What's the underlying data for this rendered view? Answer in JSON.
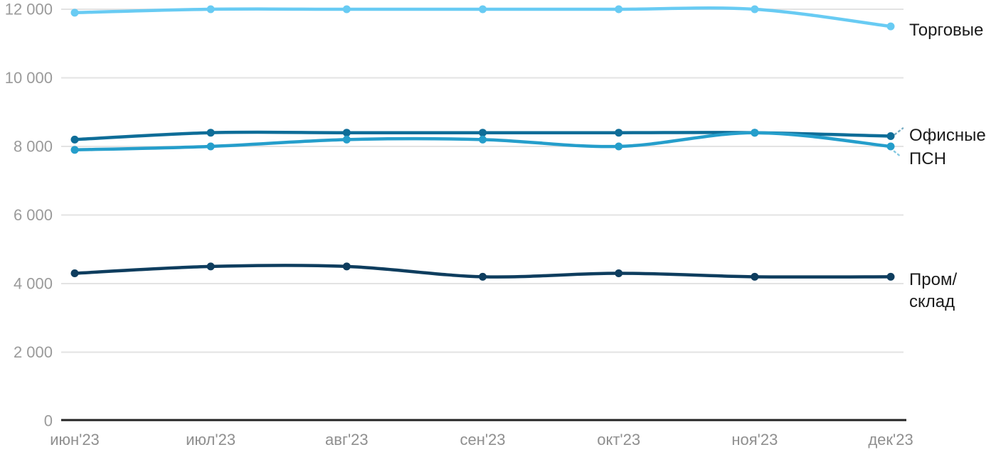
{
  "chart_data": {
    "type": "line",
    "title": "",
    "xlabel": "",
    "ylabel": "",
    "x": [
      "июн'23",
      "июл'23",
      "авг'23",
      "сен'23",
      "окт'23",
      "ноя'23",
      "дек'23"
    ],
    "series": [
      {
        "key": "torgovye",
        "name": "Торговые",
        "label_lines": [
          "Торговые"
        ],
        "color": "#68CBF3",
        "values": [
          11900,
          12000,
          12000,
          12000,
          12000,
          12000,
          11500
        ],
        "has_label_connector": false
      },
      {
        "key": "ofisnye",
        "name": "Офисные",
        "label_lines": [
          "Офисные"
        ],
        "color": "#0E6D98",
        "values": [
          8200,
          8400,
          8400,
          8400,
          8400,
          8400,
          8300
        ],
        "has_label_connector": true
      },
      {
        "key": "psn",
        "name": "ПСН",
        "label_lines": [
          "ПСН"
        ],
        "color": "#259ECB",
        "values": [
          7900,
          8000,
          8200,
          8200,
          8000,
          8400,
          8000
        ],
        "has_label_connector": true
      },
      {
        "key": "prom-sklad",
        "name": "Пром/склад",
        "label_lines": [
          "Пром/",
          "склад"
        ],
        "color": "#0E3D5E",
        "values": [
          4300,
          4500,
          4500,
          4200,
          4300,
          4200,
          4200
        ],
        "has_label_connector": false
      }
    ],
    "y_ticks": [
      0,
      2000,
      4000,
      6000,
      8000,
      10000,
      12000
    ],
    "y_tick_labels": [
      "0",
      "2 000",
      "4 000",
      "6 000",
      "8 000",
      "10 000",
      "12 000"
    ],
    "ylim": [
      0,
      12000
    ],
    "grid": true,
    "legend_position": "right-inline-labels",
    "colors": {
      "grid": "#E3E3E3",
      "axis": "#232323",
      "y_tick_text": "#9A9A9A",
      "x_tick_text": "#8F8F8F",
      "series_label_text": "#1B1B1B",
      "background": "#FFFFFF"
    }
  }
}
